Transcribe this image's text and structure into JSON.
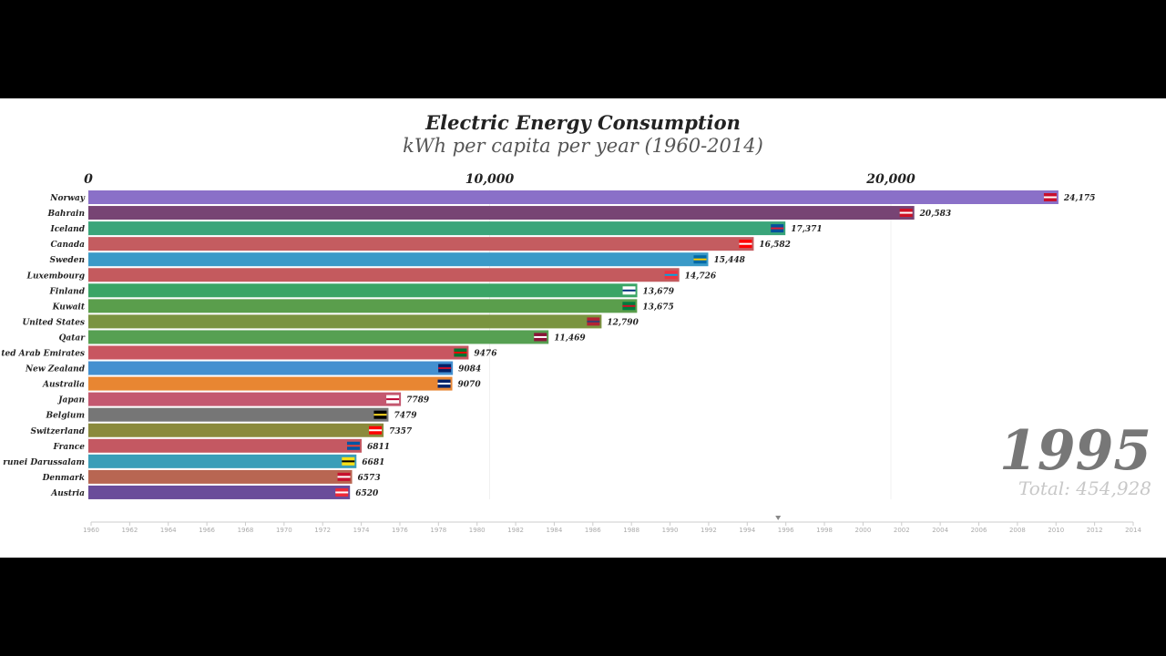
{
  "chart_data": {
    "type": "bar",
    "orientation": "horizontal",
    "title": "Electric Energy Consumption",
    "subtitle": "kWh per capita per year (1960-2014)",
    "xlim": [
      0,
      24175
    ],
    "x_ticks": [
      "0",
      "10,000",
      "20,000"
    ],
    "x_tick_values": [
      0,
      10000,
      20000
    ],
    "year": "1995",
    "total": "Total: 454,928",
    "categories": [
      "Norway",
      "Bahrain",
      "Iceland",
      "Canada",
      "Sweden",
      "Luxembourg",
      "Finland",
      "Kuwait",
      "United States",
      "Qatar",
      "ted Arab Emirates",
      "New Zealand",
      "Australia",
      "Japan",
      "Belgium",
      "Switzerland",
      "France",
      "runei Darussalam",
      "Denmark",
      "Austria"
    ],
    "values": [
      24175,
      20583,
      17371,
      16582,
      15448,
      14726,
      13679,
      13675,
      12790,
      11469,
      9476,
      9084,
      9070,
      7789,
      7479,
      7357,
      6811,
      6681,
      6573,
      6520
    ],
    "value_labels": [
      "24,175",
      "20,583",
      "17,371",
      "16,582",
      "15,448",
      "14,726",
      "13,679",
      "13,675",
      "12,790",
      "11,469",
      "9476",
      "9084",
      "9070",
      "7789",
      "7479",
      "7357",
      "6811",
      "6681",
      "6573",
      "6520"
    ],
    "colors": [
      "#8a70c8",
      "#774474",
      "#3aa57a",
      "#c45c60",
      "#3a9ac8",
      "#c45a5e",
      "#3aa566",
      "#5a9e4c",
      "#7a9440",
      "#56a052",
      "#c85660",
      "#4490d0",
      "#e88632",
      "#c45870",
      "#767676",
      "#8a8a3c",
      "#c45862",
      "#3a9eb8",
      "#b86652",
      "#6a4c9a"
    ],
    "flag_colors": [
      [
        "#c8102e",
        "#ffffff"
      ],
      [
        "#ce1126",
        "#ffffff"
      ],
      [
        "#02529c",
        "#dc1e35"
      ],
      [
        "#ff0000",
        "#ffffff"
      ],
      [
        "#006aa7",
        "#fecc00"
      ],
      [
        "#ef3340",
        "#00a3e0"
      ],
      [
        "#ffffff",
        "#003580"
      ],
      [
        "#007a3d",
        "#ce1126"
      ],
      [
        "#b22234",
        "#3c3b6e"
      ],
      [
        "#8a1538",
        "#ffffff"
      ],
      [
        "#00732f",
        "#ff0000"
      ],
      [
        "#012169",
        "#c8102e"
      ],
      [
        "#012169",
        "#ffffff"
      ],
      [
        "#ffffff",
        "#bc002d"
      ],
      [
        "#000000",
        "#fdda24"
      ],
      [
        "#ff0000",
        "#ffffff"
      ],
      [
        "#0055a4",
        "#ef4135"
      ],
      [
        "#f7e017",
        "#000000"
      ],
      [
        "#c8102e",
        "#ffffff"
      ],
      [
        "#ed2939",
        "#ffffff"
      ]
    ],
    "timeline": {
      "start": 1960,
      "end": 2014,
      "current": 1995.6,
      "labels": [
        "1960",
        "1962",
        "1964",
        "1966",
        "1968",
        "1970",
        "1972",
        "1974",
        "1976",
        "1978",
        "1980",
        "1982",
        "1984",
        "1986",
        "1988",
        "1990",
        "1992",
        "1994",
        "1996",
        "1998",
        "2000",
        "2002",
        "2004",
        "2006",
        "2008",
        "2010",
        "2012",
        "2014"
      ]
    }
  }
}
